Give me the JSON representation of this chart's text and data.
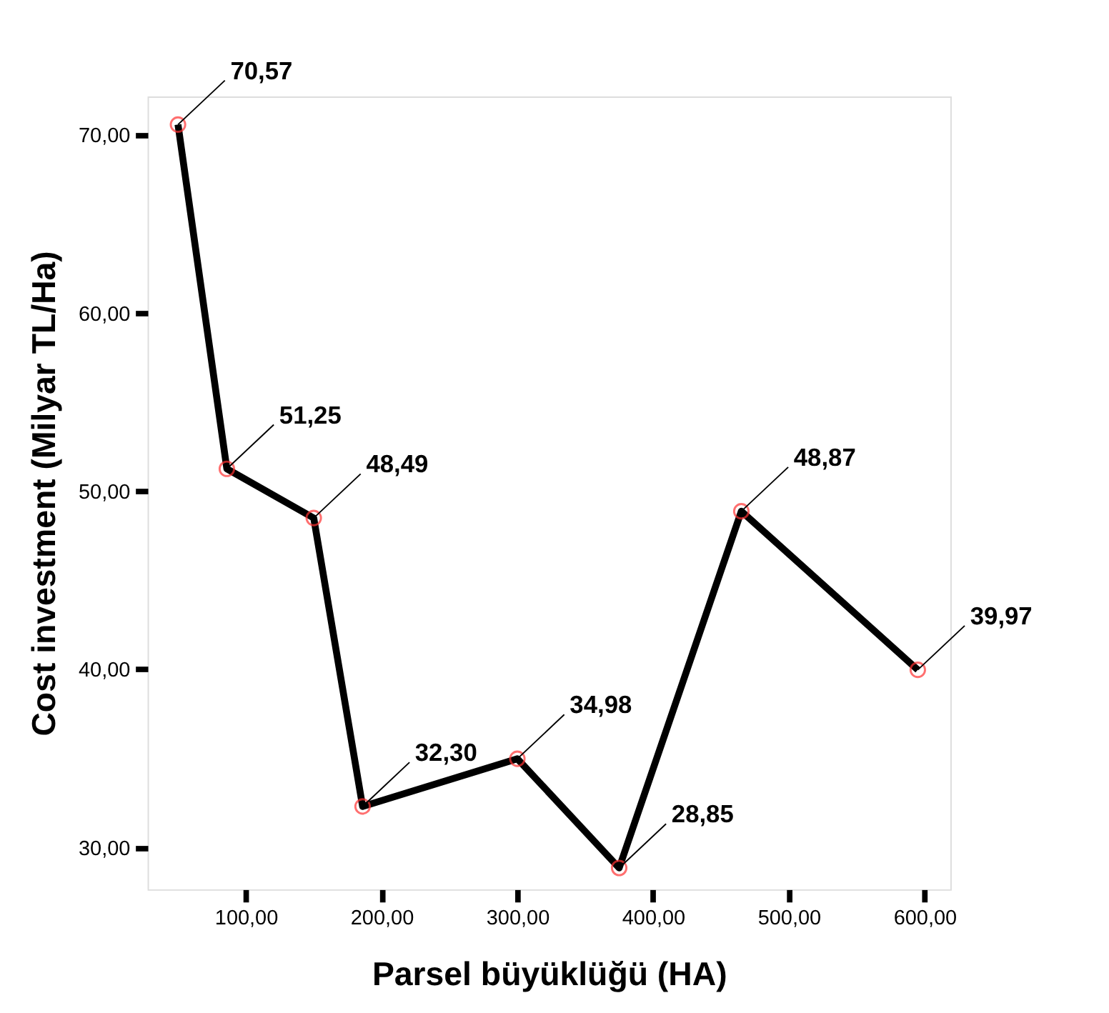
{
  "chart_data": {
    "type": "line",
    "xlabel": "Parsel büyüklüğü (HA)",
    "ylabel": "Cost investment (Milyar TL/Ha)",
    "x": [
      50,
      86,
      150,
      186,
      300,
      375,
      465,
      595
    ],
    "series": [
      {
        "color": "#000000",
        "values": [
          70.57,
          51.25,
          48.49,
          32.3,
          34.98,
          28.85,
          48.87,
          39.97
        ],
        "value_labels": [
          "70,57",
          "51,25",
          "48,49",
          "32,30",
          "34,98",
          "28,85",
          "48,87",
          "39,97"
        ]
      }
    ],
    "xlim": [
      27.6,
      619
    ],
    "ylim": [
      27.65,
      72.15
    ],
    "xticks": [
      {
        "value": 100,
        "label": "100,00"
      },
      {
        "value": 200,
        "label": "200,00"
      },
      {
        "value": 300,
        "label": "300,00"
      },
      {
        "value": 400,
        "label": "400,00"
      },
      {
        "value": 500,
        "label": "500,00"
      },
      {
        "value": 600,
        "label": "600,00"
      }
    ],
    "yticks": [
      {
        "value": 30,
        "label": "30,00"
      },
      {
        "value": 40,
        "label": "40,00"
      },
      {
        "value": 50,
        "label": "50,00"
      },
      {
        "value": 60,
        "label": "60,00"
      },
      {
        "value": 70,
        "label": "70,00"
      }
    ],
    "grid": false,
    "marker": "circle",
    "line_style": "solid"
  }
}
